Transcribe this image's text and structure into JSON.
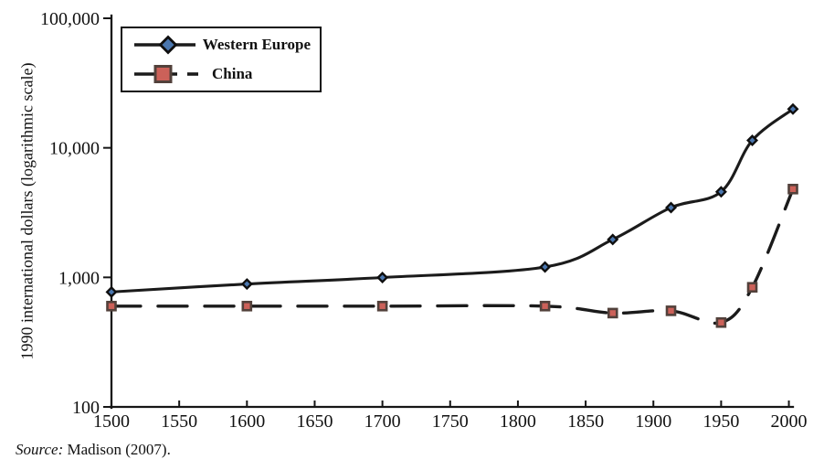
{
  "chart_data": {
    "type": "line",
    "title": "",
    "xlabel": "",
    "ylabel": "1990 international dollars (logarithmic scale)",
    "y_scale": "logarithmic",
    "grid": false,
    "legend_position": "top-left",
    "x_range": [
      1500,
      2003
    ],
    "y_range": [
      100,
      100000
    ],
    "x_ticks": [
      1500,
      1550,
      1600,
      1650,
      1700,
      1750,
      1800,
      1850,
      1900,
      1950,
      2000
    ],
    "y_ticks": [
      {
        "value": 100,
        "label": "100"
      },
      {
        "value": 1000,
        "label": "1,000"
      },
      {
        "value": 10000,
        "label": "10,000"
      },
      {
        "value": 100000,
        "label": "100,000"
      }
    ],
    "x": [
      1500,
      1600,
      1700,
      1820,
      1870,
      1913,
      1950,
      1973,
      2003
    ],
    "series": [
      {
        "name": "Western Europe",
        "values": [
          771,
          889,
          997,
          1202,
          1960,
          3457,
          4578,
          11416,
          19912
        ],
        "line_style": "solid",
        "line_color": "#1b1b1b",
        "marker": "diamond",
        "marker_fill": "#4a76ae",
        "marker_border": "#0f0f0f"
      },
      {
        "name": "China",
        "values": [
          600,
          600,
          600,
          600,
          530,
          552,
          448,
          838,
          4803
        ],
        "line_style": "long-dash",
        "line_color": "#1b1b1b",
        "marker": "square",
        "marker_fill": "#cc6159",
        "marker_border": "#52413b"
      }
    ]
  },
  "source_note": {
    "label": "Source:",
    "citation": " Madison (2007)."
  }
}
